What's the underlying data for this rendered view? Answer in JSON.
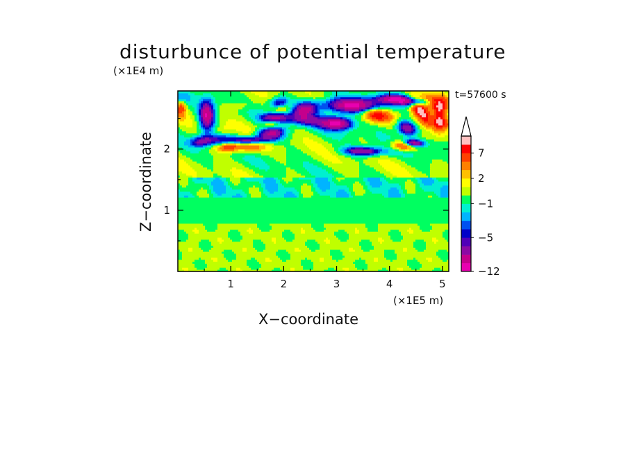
{
  "chart_data": {
    "type": "heatmap",
    "title": "disturbunce of potential temperature",
    "xlabel": "X−coordinate",
    "ylabel": "Z−coordinate",
    "x_multiplier": "(×1E5 m)",
    "y_multiplier": "(×1E4 m)",
    "timestamp": "t=57600 s",
    "xlim": [
      0,
      5.12
    ],
    "ylim": [
      0,
      2.95
    ],
    "x_ticks": [
      1,
      2,
      3,
      4,
      5
    ],
    "y_ticks": [
      1,
      2
    ],
    "colorbar": {
      "levels": [
        -12,
        -10,
        -8,
        -6,
        -5,
        -4,
        -3,
        -2,
        -1,
        0,
        1,
        2,
        3,
        5,
        7,
        9,
        11
      ],
      "colors": [
        "#e800b0",
        "#c4008c",
        "#8c0aa4",
        "#5000b8",
        "#0000c8",
        "#0050f0",
        "#00b4ff",
        "#00f0d0",
        "#00ff60",
        "#c0ff00",
        "#ffff00",
        "#ffc000",
        "#ff8000",
        "#ff4000",
        "#ff0000",
        "#ffc0c0"
      ],
      "labels": [
        "-12",
        "-5",
        "-1",
        "2",
        "7"
      ],
      "label_text": [
        "−12",
        "−5",
        "−1",
        "2",
        "7"
      ],
      "extend": "max"
    }
  }
}
